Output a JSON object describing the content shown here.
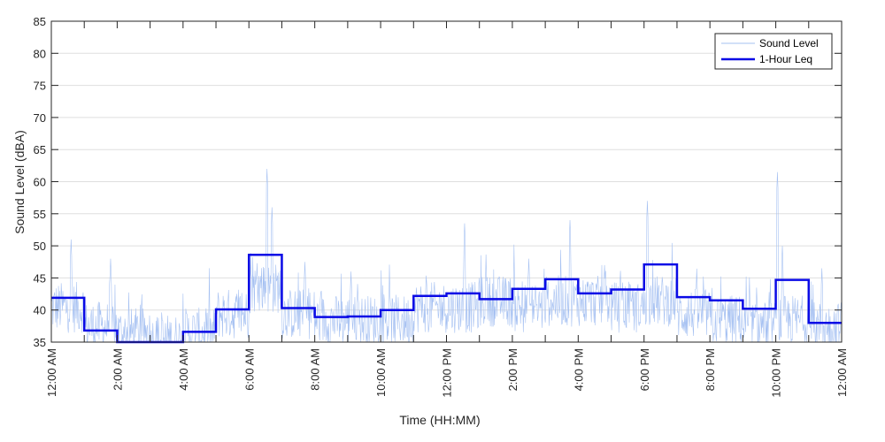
{
  "chart_data": {
    "type": "line",
    "title": "",
    "xlabel": "Time (HH:MM)",
    "ylabel": "Sound Level (dBA)",
    "xlim": [
      0,
      24
    ],
    "ylim": [
      35,
      85
    ],
    "yticks": [
      35,
      40,
      45,
      50,
      55,
      60,
      65,
      70,
      75,
      80,
      85
    ],
    "xticks": [
      {
        "hour": 0,
        "label": "12:00 AM"
      },
      {
        "hour": 2,
        "label": "2:00 AM"
      },
      {
        "hour": 4,
        "label": "4:00 AM"
      },
      {
        "hour": 6,
        "label": "6:00 AM"
      },
      {
        "hour": 8,
        "label": "8:00 AM"
      },
      {
        "hour": 10,
        "label": "10:00 AM"
      },
      {
        "hour": 12,
        "label": "12:00 PM"
      },
      {
        "hour": 14,
        "label": "2:00 PM"
      },
      {
        "hour": 16,
        "label": "4:00 PM"
      },
      {
        "hour": 18,
        "label": "6:00 PM"
      },
      {
        "hour": 20,
        "label": "8:00 PM"
      },
      {
        "hour": 22,
        "label": "10:00 PM"
      },
      {
        "hour": 24,
        "label": "12:00 AM"
      }
    ],
    "grid": true,
    "legend_position": "top-right",
    "series": [
      {
        "name": "Sound Level",
        "color": "#a6c1f2",
        "style": "thin",
        "hourly_mean": [
          40,
          37,
          36,
          35,
          36,
          39,
          43,
          39,
          38,
          38,
          38,
          40,
          40,
          41,
          40,
          41,
          41,
          40,
          41,
          39,
          38,
          37,
          38,
          37
        ],
        "peaks": [
          [
            0.6,
            51
          ],
          [
            1.8,
            48
          ],
          [
            6.55,
            62
          ],
          [
            6.7,
            56
          ],
          [
            7.7,
            47.5
          ],
          [
            12.55,
            53.5
          ],
          [
            15.75,
            54
          ],
          [
            18.1,
            57
          ],
          [
            22.05,
            61.5
          ],
          [
            22.2,
            50
          ],
          [
            9.1,
            46
          ],
          [
            13.2,
            47
          ],
          [
            14.5,
            48
          ],
          [
            16.8,
            47
          ],
          [
            19.6,
            46
          ],
          [
            23.4,
            46.5
          ]
        ]
      },
      {
        "name": "1-Hour Leq",
        "color": "#0a0ae6",
        "style": "thick",
        "values": [
          41.9,
          36.8,
          35,
          35,
          36.6,
          40.1,
          48.6,
          40.3,
          38.9,
          39.0,
          40.0,
          42.2,
          42.6,
          41.7,
          43.3,
          44.8,
          42.6,
          43.2,
          47.1,
          42.0,
          41.5,
          40.2,
          44.7,
          38.0
        ]
      }
    ]
  },
  "colors": {
    "axis": "#262626",
    "grid": "#dfdfdf",
    "background": "#ffffff"
  }
}
